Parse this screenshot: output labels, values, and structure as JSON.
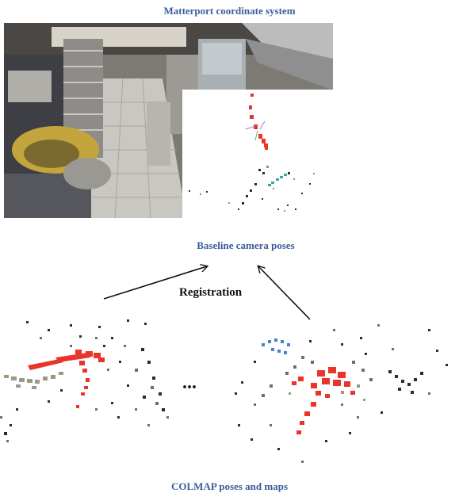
{
  "labels": {
    "top": "Matterport coordinate system",
    "baseline": "Baseline camera poses",
    "registration": "Registration",
    "ellipsis": "...",
    "bottom": "COLMAP poses and maps"
  },
  "colors": {
    "label_blue": "#3b5c9a",
    "pose_red": "#e8342a",
    "point_gray": "#6a6e78",
    "point_dark": "#2a2c33",
    "point_blue": "#4a7fc4",
    "point_teal": "#3aa8a0",
    "point_olive": "#9a9a84"
  }
}
